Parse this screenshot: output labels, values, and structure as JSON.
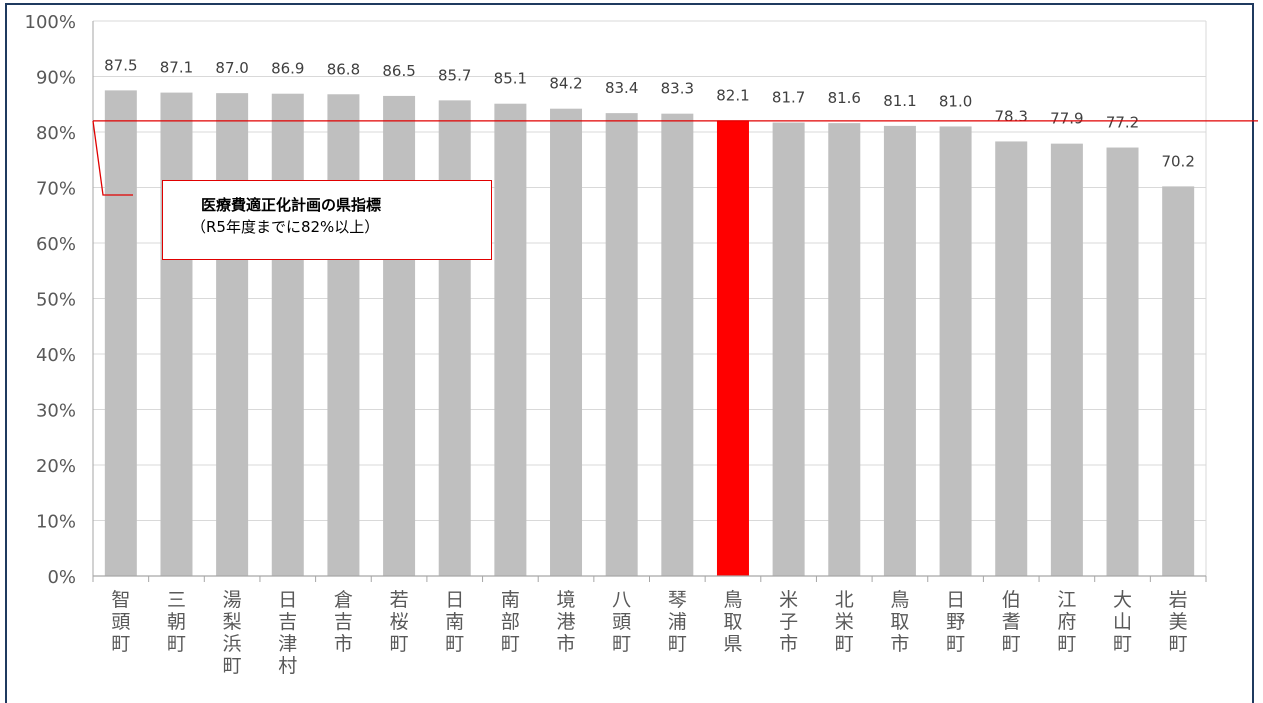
{
  "chart_data": {
    "type": "bar",
    "categories": [
      "智頭町",
      "三朝町",
      "湯梨浜町",
      "日吉津村",
      "倉吉市",
      "若桜町",
      "日南町",
      "南部町",
      "境港市",
      "八頭町",
      "琴浦町",
      "鳥取県",
      "米子市",
      "北栄町",
      "鳥取市",
      "日野町",
      "伯耆町",
      "江府町",
      "大山町",
      "岩美町"
    ],
    "values": [
      87.5,
      87.1,
      87.0,
      86.9,
      86.8,
      86.5,
      85.7,
      85.1,
      84.2,
      83.4,
      83.3,
      82.1,
      81.7,
      81.6,
      81.1,
      81.0,
      78.3,
      77.9,
      77.2,
      70.2
    ],
    "value_labels": [
      "87.5",
      "87.1",
      "87.0",
      "86.9",
      "86.8",
      "86.5",
      "85.7",
      "85.1",
      "84.2",
      "83.4",
      "83.3",
      "82.1",
      "81.7",
      "81.6",
      "81.1",
      "81.0",
      "78.3",
      "77.9",
      "77.2",
      "70.2"
    ],
    "highlight_category": "鳥取県",
    "yticks": [
      "0%",
      "10%",
      "20%",
      "30%",
      "40%",
      "50%",
      "60%",
      "70%",
      "80%",
      "90%",
      "100%"
    ],
    "ylim": [
      0,
      100
    ],
    "target_value": 82,
    "grid": true,
    "annotation": {
      "line1": "医療費適正化計画の県指標",
      "line2": "（R5年度までに82%以上）"
    },
    "colors": {
      "bar": "#bfbfbf",
      "highlight": "#ff0000",
      "target_line": "#e00000",
      "grid": "#d9d9d9",
      "axis": "#a6a6a6",
      "frame": "#1f3a5f"
    }
  }
}
